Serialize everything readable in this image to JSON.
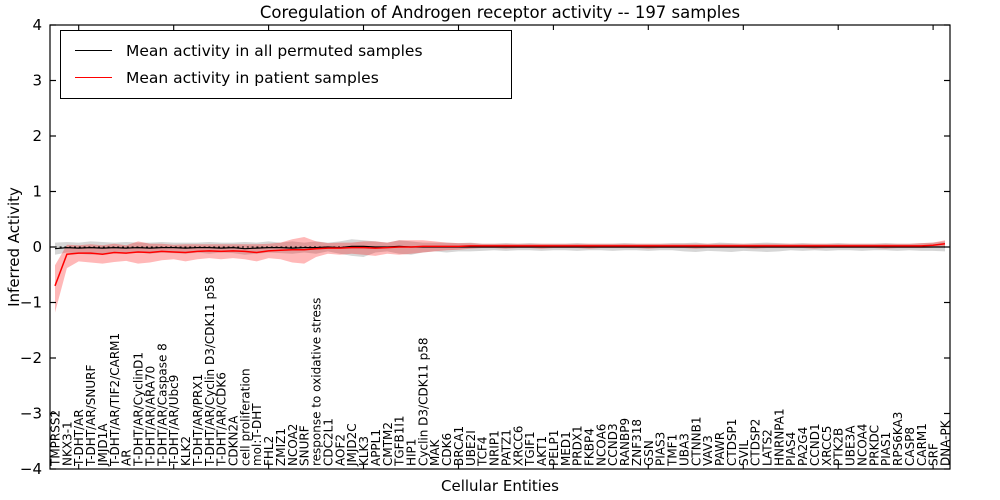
{
  "chart_data": {
    "type": "line",
    "title": "Coregulation of Androgen receptor activity -- 197 samples",
    "xlabel": "Cellular Entities",
    "ylabel": "Inferred Activity",
    "ylim": [
      -4,
      4
    ],
    "yticks": [
      4,
      3,
      2,
      1,
      0,
      -1,
      -2,
      -3,
      -4
    ],
    "grid": false,
    "legend_position": "upper left",
    "zero_line": {
      "style": "dotted",
      "color": "#000000"
    },
    "xtick_positions": [
      2,
      10,
      18,
      26,
      34,
      42,
      50,
      58,
      66,
      74
    ],
    "categories": [
      "TMPRSS2",
      "NKX3-1",
      "T-DHT/AR",
      "T-DHT/AR/SNURF",
      "JMJD1A",
      "T-DHT/AR/TIF2/CARM1",
      "AR",
      "T-DHT/AR/CyclinD1",
      "T-DHT/AR/ARA70",
      "T-DHT/AR/Caspase 8",
      "T-DHT/AR/Ubc9",
      "KLK2",
      "T-DHT/AR/PRX1",
      "T-DHT/AR/Cyclin D3/CDK11 p58",
      "T-DHT/AR/CDK6",
      "CDKN2A",
      "cell proliferation",
      "mol:T-DHT",
      "FHL2",
      "ZMIZ1",
      "NCOA2",
      "SNURF",
      "response to oxidative stress",
      "CDC2L1",
      "AOF2",
      "JMJD2C",
      "KLK3",
      "APPL1",
      "CMTM2",
      "TGFB1I1",
      "HIP1",
      "Cyclin D3/CDK11 p58",
      "MAK",
      "CDK6",
      "BRCA1",
      "UBE2I",
      "TCF4",
      "NRIP1",
      "PATZ1",
      "XRCC6",
      "TGIF1",
      "AKT1",
      "PELP1",
      "MED1",
      "PRDX1",
      "FKBP4",
      "NCOA6",
      "CCND3",
      "RANBP9",
      "ZNF318",
      "GSN",
      "PIAS3",
      "TMF1",
      "UBA3",
      "CTNNB1",
      "VAV3",
      "PAWR",
      "CTDSP1",
      "SVIL",
      "CTDSP2",
      "LATS2",
      "HNRNPA1",
      "PIAS4",
      "PA2G4",
      "CCND1",
      "XRCC5",
      "PTK2B",
      "UBE3A",
      "NCOA4",
      "PRKDC",
      "PIAS1",
      "RPS6KA3",
      "CASP8",
      "CARM1",
      "SRF",
      "DNA-PK"
    ],
    "series": [
      {
        "name": "Mean activity in all permuted samples",
        "color": "#000000",
        "band_color": "rgba(0,0,0,0.16)",
        "values": [
          -0.03,
          -0.01,
          -0.02,
          -0.01,
          -0.02,
          -0.01,
          -0.02,
          -0.01,
          -0.02,
          -0.01,
          -0.01,
          -0.02,
          -0.01,
          -0.01,
          -0.02,
          -0.01,
          -0.03,
          -0.02,
          -0.01,
          -0.01,
          -0.02,
          -0.01,
          -0.01,
          0.0,
          -0.01,
          0.01,
          0.01,
          0.0,
          0.0,
          0.01,
          0.0,
          0.0,
          0.0,
          0.0,
          0.0,
          0.0,
          0.0,
          0.0,
          0.0,
          0.0,
          0.0,
          0.0,
          0.0,
          0.0,
          0.0,
          0.0,
          0.0,
          0.0,
          0.0,
          0.0,
          0.0,
          0.0,
          0.0,
          0.0,
          0.0,
          0.0,
          0.0,
          0.0,
          0.0,
          0.0,
          0.0,
          0.0,
          0.0,
          0.0,
          0.0,
          0.0,
          0.0,
          0.0,
          0.0,
          0.0,
          0.0,
          0.0,
          0.0,
          0.0,
          0.0,
          0.0
        ],
        "band_lo": [
          -0.14,
          -0.1,
          -0.12,
          -0.14,
          -0.12,
          -0.11,
          -0.12,
          -0.1,
          -0.12,
          -0.1,
          -0.11,
          -0.12,
          -0.1,
          -0.12,
          -0.1,
          -0.11,
          -0.14,
          -0.12,
          -0.1,
          -0.11,
          -0.12,
          -0.1,
          -0.12,
          -0.08,
          -0.12,
          -0.16,
          -0.18,
          -0.1,
          -0.08,
          -0.12,
          -0.14,
          -0.1,
          -0.08,
          -0.1,
          -0.08,
          -0.08,
          -0.07,
          -0.06,
          -0.07,
          -0.06,
          -0.06,
          -0.07,
          -0.06,
          -0.06,
          -0.07,
          -0.06,
          -0.06,
          -0.07,
          -0.06,
          -0.06,
          -0.07,
          -0.06,
          -0.06,
          -0.08,
          -0.09,
          -0.07,
          -0.08,
          -0.09,
          -0.07,
          -0.08,
          -0.09,
          -0.08,
          -0.06,
          -0.07,
          -0.06,
          -0.07,
          -0.06,
          -0.06,
          -0.07,
          -0.06,
          -0.06,
          -0.07,
          -0.06,
          -0.07,
          -0.07,
          -0.08
        ],
        "band_hi": [
          0.08,
          0.09,
          0.08,
          0.1,
          0.09,
          0.08,
          0.09,
          0.08,
          0.08,
          0.09,
          0.08,
          0.08,
          0.08,
          0.09,
          0.08,
          0.08,
          0.09,
          0.08,
          0.1,
          0.08,
          0.1,
          0.08,
          0.1,
          0.08,
          0.1,
          0.14,
          0.12,
          0.1,
          0.08,
          0.12,
          0.1,
          0.08,
          0.08,
          0.08,
          0.07,
          0.08,
          0.06,
          0.06,
          0.07,
          0.06,
          0.07,
          0.06,
          0.06,
          0.06,
          0.07,
          0.06,
          0.06,
          0.06,
          0.07,
          0.06,
          0.06,
          0.06,
          0.07,
          0.07,
          0.08,
          0.06,
          0.08,
          0.07,
          0.06,
          0.07,
          0.08,
          0.07,
          0.06,
          0.07,
          0.06,
          0.06,
          0.07,
          0.06,
          0.06,
          0.06,
          0.07,
          0.06,
          0.06,
          0.07,
          0.08,
          0.1
        ]
      },
      {
        "name": "Mean activity in patient samples",
        "color": "#ff0000",
        "band_color": "rgba(255,0,0,0.28)",
        "values": [
          -0.7,
          -0.13,
          -0.11,
          -0.11,
          -0.13,
          -0.1,
          -0.11,
          -0.09,
          -0.1,
          -0.08,
          -0.09,
          -0.1,
          -0.08,
          -0.07,
          -0.08,
          -0.07,
          -0.08,
          -0.1,
          -0.07,
          -0.06,
          -0.05,
          -0.05,
          -0.03,
          -0.02,
          -0.02,
          -0.01,
          -0.01,
          -0.02,
          -0.01,
          0.0,
          0.0,
          0.01,
          0.01,
          0.01,
          0.01,
          0.02,
          0.02,
          0.02,
          0.02,
          0.02,
          0.02,
          0.02,
          0.02,
          0.02,
          0.02,
          0.02,
          0.02,
          0.02,
          0.02,
          0.02,
          0.02,
          0.02,
          0.02,
          0.02,
          0.02,
          0.02,
          0.02,
          0.02,
          0.02,
          0.02,
          0.02,
          0.02,
          0.02,
          0.02,
          0.02,
          0.02,
          0.02,
          0.02,
          0.02,
          0.02,
          0.02,
          0.02,
          0.02,
          0.02,
          0.03,
          0.06
        ],
        "band_lo": [
          -1.18,
          -0.38,
          -0.26,
          -0.28,
          -0.3,
          -0.27,
          -0.25,
          -0.3,
          -0.28,
          -0.24,
          -0.22,
          -0.26,
          -0.22,
          -0.2,
          -0.22,
          -0.2,
          -0.22,
          -0.26,
          -0.2,
          -0.22,
          -0.28,
          -0.3,
          -0.18,
          -0.12,
          -0.14,
          -0.12,
          -0.14,
          -0.16,
          -0.12,
          -0.14,
          -0.12,
          -0.1,
          -0.08,
          -0.06,
          -0.05,
          -0.03,
          -0.02,
          -0.02,
          -0.03,
          -0.02,
          -0.02,
          -0.03,
          -0.02,
          -0.02,
          -0.02,
          -0.03,
          -0.02,
          -0.02,
          -0.02,
          -0.02,
          -0.03,
          -0.02,
          -0.02,
          -0.02,
          -0.03,
          -0.02,
          -0.02,
          -0.02,
          -0.02,
          -0.03,
          -0.02,
          -0.02,
          -0.02,
          -0.02,
          -0.03,
          -0.02,
          -0.02,
          -0.02,
          -0.02,
          -0.02,
          -0.03,
          -0.02,
          -0.02,
          -0.02,
          -0.01,
          0.0
        ],
        "band_hi": [
          -0.33,
          0.04,
          0.03,
          0.05,
          0.03,
          0.06,
          0.03,
          0.1,
          0.06,
          0.06,
          0.04,
          0.05,
          0.05,
          0.05,
          0.05,
          0.05,
          0.05,
          0.05,
          0.06,
          0.08,
          0.14,
          0.18,
          0.1,
          0.07,
          0.08,
          0.08,
          0.1,
          0.1,
          0.08,
          0.12,
          0.12,
          0.12,
          0.1,
          0.08,
          0.07,
          0.07,
          0.06,
          0.06,
          0.06,
          0.06,
          0.06,
          0.06,
          0.06,
          0.06,
          0.06,
          0.06,
          0.06,
          0.06,
          0.06,
          0.06,
          0.06,
          0.06,
          0.06,
          0.06,
          0.06,
          0.06,
          0.06,
          0.06,
          0.06,
          0.06,
          0.06,
          0.06,
          0.06,
          0.06,
          0.06,
          0.06,
          0.06,
          0.06,
          0.06,
          0.06,
          0.06,
          0.06,
          0.06,
          0.07,
          0.08,
          0.12
        ]
      }
    ]
  }
}
